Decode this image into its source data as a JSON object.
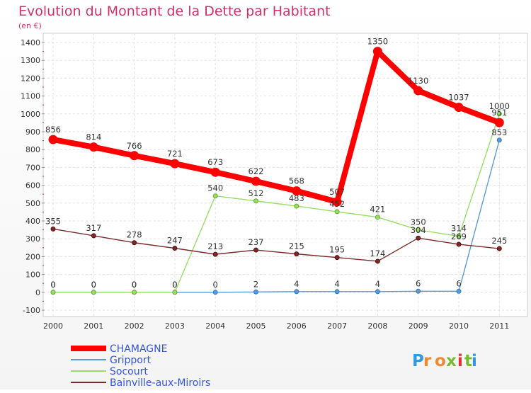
{
  "chart_data": {
    "type": "line",
    "title": "Evolution du Montant de la Dette par Habitant",
    "subtitle": "(en €)",
    "x": [
      "2000",
      "2001",
      "2002",
      "2003",
      "2004",
      "2005",
      "2006",
      "2007",
      "2008",
      "2009",
      "2010",
      "2011"
    ],
    "yticks": [
      "-100",
      "0",
      "100",
      "200",
      "300",
      "400",
      "500",
      "600",
      "700",
      "800",
      "900",
      "1000",
      "1100",
      "1200",
      "1300",
      "1400"
    ],
    "ylim": [
      -100,
      1400
    ],
    "grid": true,
    "legend_position": "bottom-left",
    "series": [
      {
        "name": "CHAMAGNE",
        "color": "#ff0000",
        "values": [
          856,
          814,
          766,
          721,
          673,
          622,
          568,
          507,
          1350,
          1130,
          1037,
          951
        ],
        "labels": [
          "856",
          "814",
          "766",
          "721",
          "673",
          "622",
          "568",
          "507",
          "1350",
          "1130",
          "1037",
          "951"
        ]
      },
      {
        "name": "Gripport",
        "color": "#5b9bd5",
        "values": [
          0,
          0,
          0,
          0,
          0,
          2,
          4,
          4,
          4,
          6,
          6,
          853
        ],
        "labels": [
          "0",
          "0",
          "0",
          "0",
          "0",
          "2",
          "4",
          "4",
          "4",
          "6",
          "6",
          "853"
        ]
      },
      {
        "name": "Socourt",
        "color": "#99dd66",
        "values": [
          0,
          0,
          0,
          0,
          540,
          512,
          483,
          452,
          421,
          350,
          314,
          1000
        ],
        "labels": [
          "0",
          "0",
          "0",
          "0",
          "540",
          "512",
          "483",
          "452",
          "421",
          "350",
          "314",
          "1000"
        ]
      },
      {
        "name": "Bainville-aux-Miroirs",
        "color": "#7a2a2a",
        "values": [
          355,
          317,
          278,
          247,
          213,
          237,
          215,
          195,
          174,
          304,
          269,
          245
        ],
        "labels": [
          "355",
          "317",
          "278",
          "247",
          "213",
          "237",
          "215",
          "195",
          "174",
          "304",
          "269",
          "245"
        ]
      }
    ]
  },
  "logo": {
    "text": "Proxiti"
  }
}
